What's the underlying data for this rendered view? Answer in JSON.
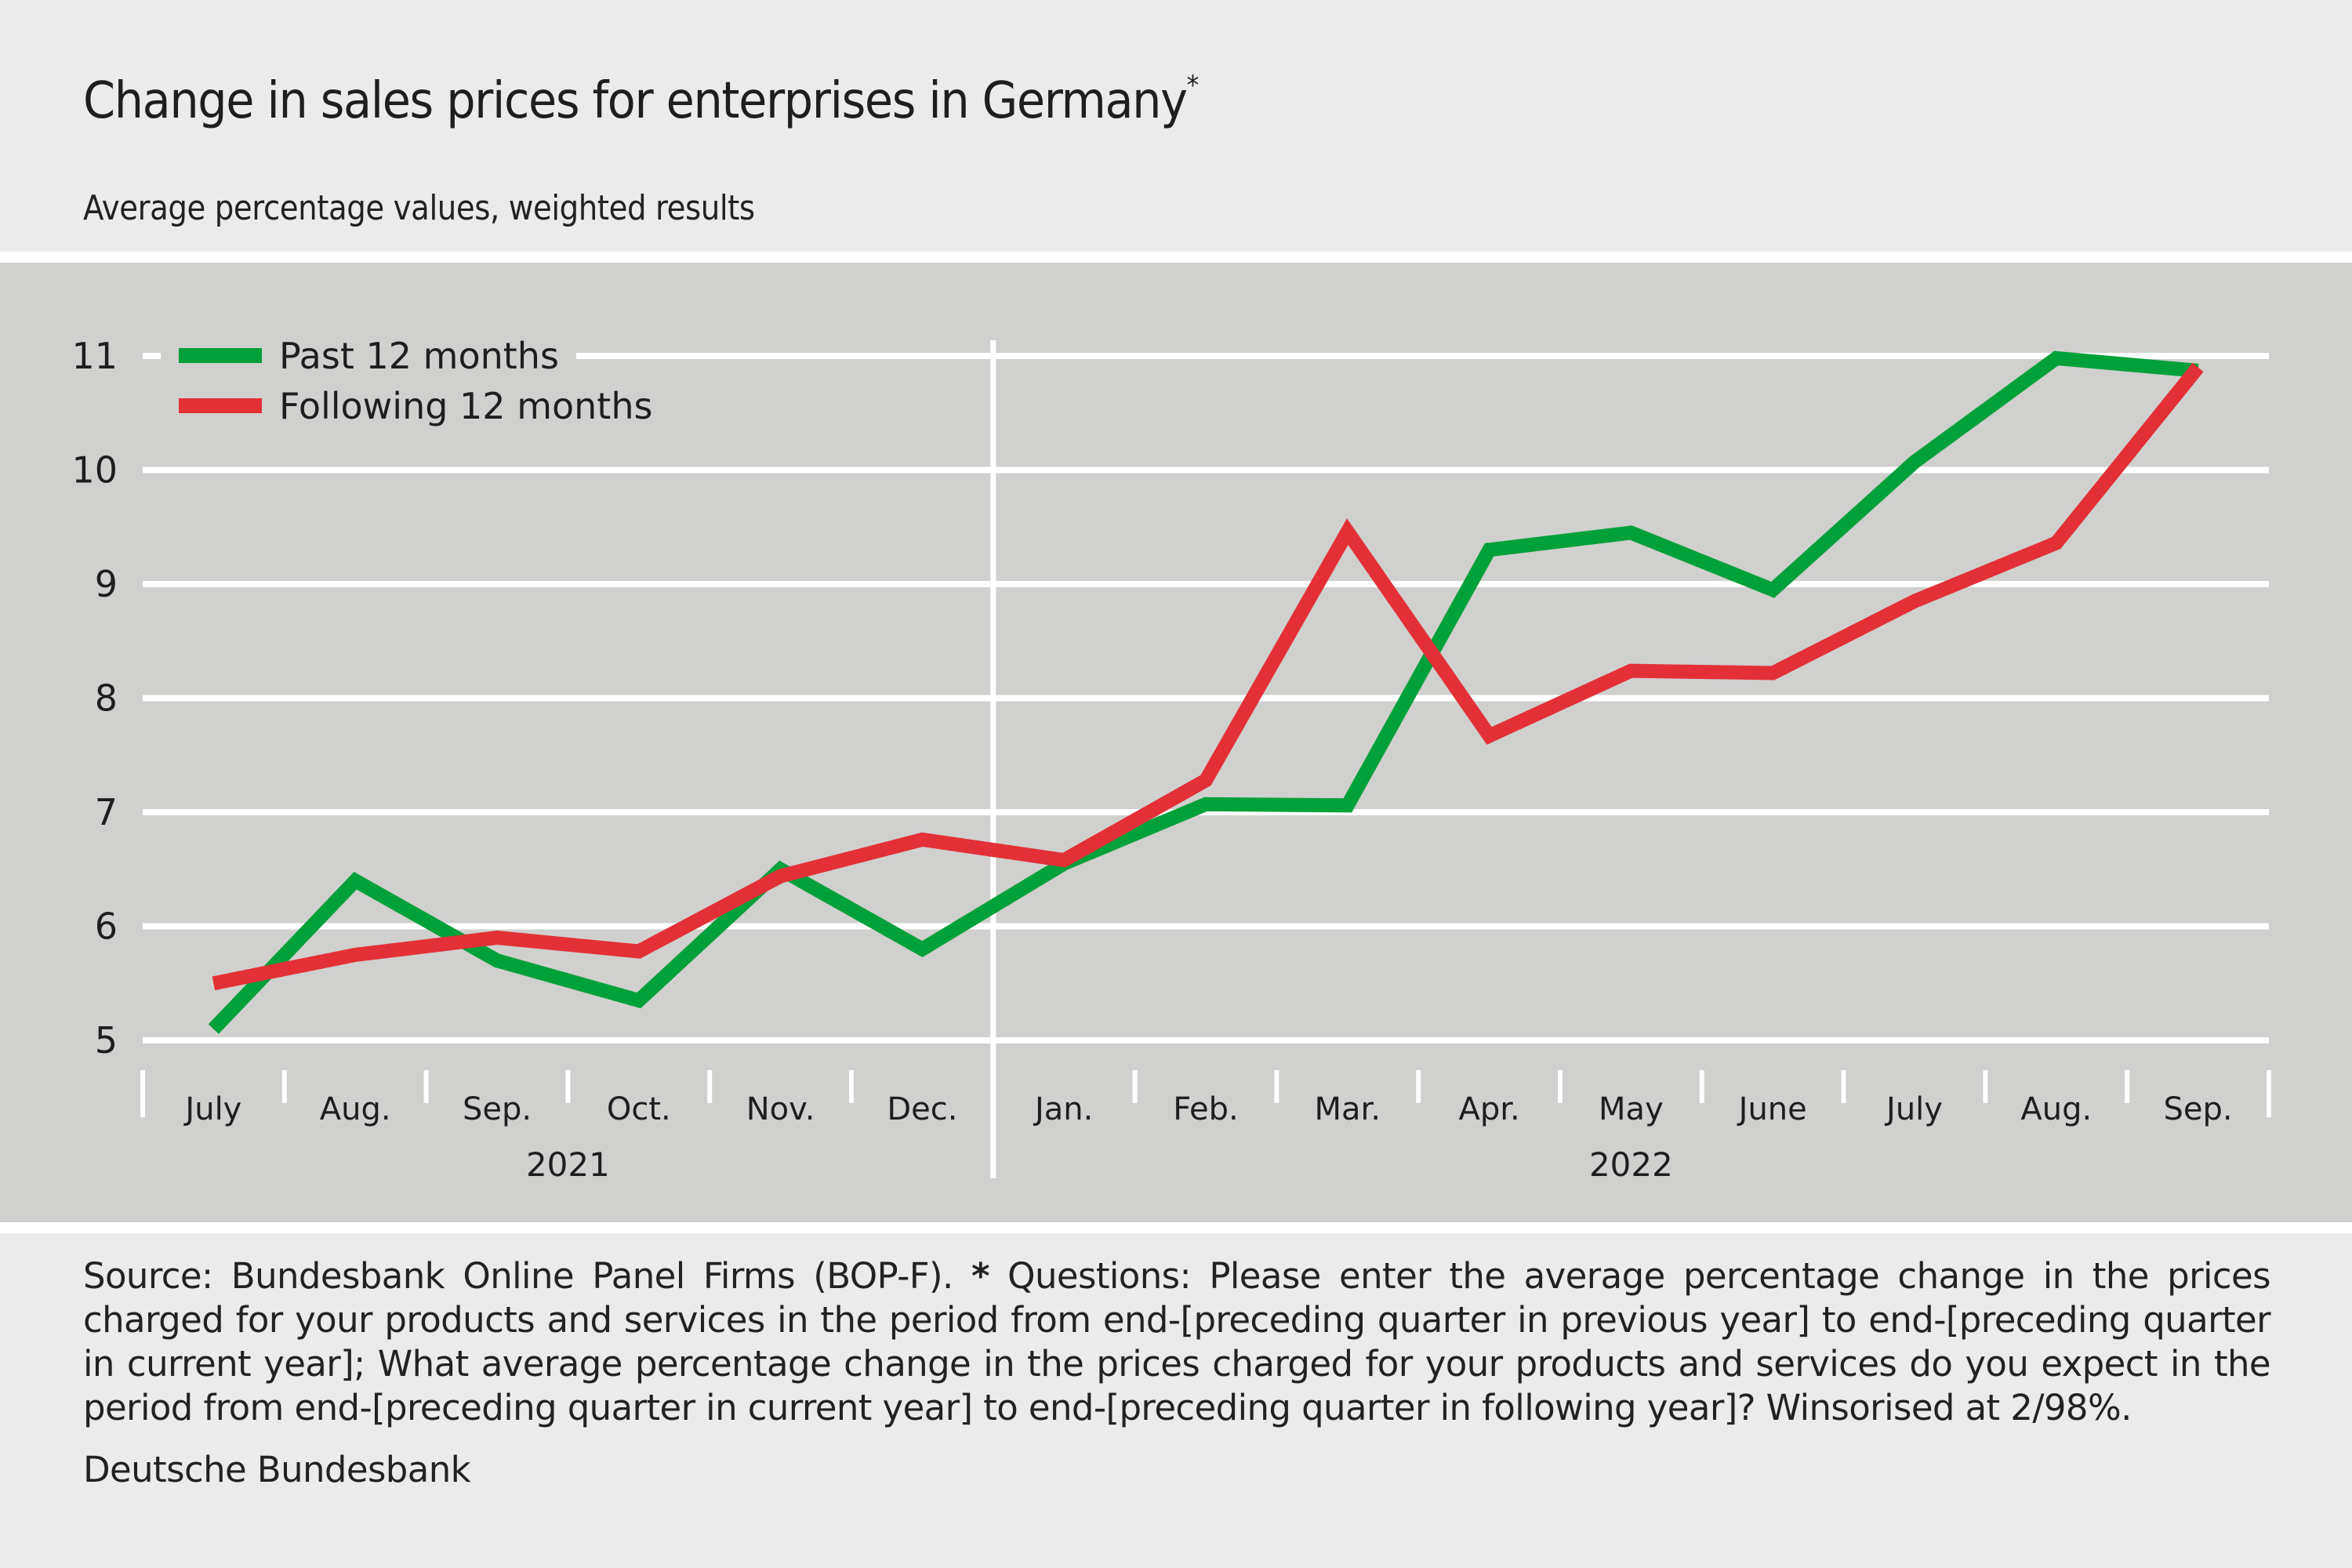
{
  "header": {
    "title": "Change in sales prices for enterprises in Germany",
    "title_footnote_mark": "*",
    "subtitle": "Average percentage values, weighted results"
  },
  "footer": {
    "source_prefix": "Source: Bundesbank Online Panel Firms (BOP-F).",
    "footnote_mark": "*",
    "footnote_text": "Questions: Please enter the average percentage change in the prices charged for your products and services in the period from end-[preceding quarter in previous year] to end-[preceding quarter in current year]; What average percentage change in the prices charged for your products and services do you expect in the period from end-[preceding quarter in current year] to end-[preceding quarter in following year]? Winsorised at 2/98%.",
    "credit": "Deutsche Bundesbank"
  },
  "colors": {
    "past": "#00a03a",
    "following": "#e33036",
    "panel": "#d0d0ce",
    "grid": "#ffffff",
    "background": "#ebebeb"
  },
  "chart_data": {
    "type": "line",
    "title": "Change in sales prices for enterprises in Germany*",
    "subtitle": "Average percentage values, weighted results",
    "xlabel": "",
    "ylabel": "",
    "categories": [
      "July",
      "Aug.",
      "Sep.",
      "Oct.",
      "Nov.",
      "Dec.",
      "Jan.",
      "Feb.",
      "Mar.",
      "Apr.",
      "May",
      "June",
      "July",
      "Aug.",
      "Sep."
    ],
    "year_groups": [
      {
        "label": "2021",
        "start_index": 0,
        "end_index": 5
      },
      {
        "label": "2022",
        "start_index": 6,
        "end_index": 14
      }
    ],
    "series": [
      {
        "name": "Past 12 months",
        "color": "#00a03a",
        "values": [
          5.1,
          6.4,
          5.7,
          5.35,
          6.5,
          5.8,
          6.55,
          7.07,
          7.06,
          9.3,
          9.45,
          8.95,
          10.07,
          10.98,
          10.87
        ]
      },
      {
        "name": "Following 12 months",
        "color": "#e33036",
        "values": [
          5.5,
          5.75,
          5.9,
          5.78,
          6.44,
          6.76,
          6.58,
          7.28,
          9.46,
          7.67,
          8.24,
          8.22,
          8.85,
          9.36,
          10.9
        ]
      }
    ],
    "yticks": [
      5,
      6,
      7,
      8,
      9,
      10,
      11
    ],
    "ylim": [
      5,
      11
    ],
    "grid": true,
    "legend_position": "top-left"
  }
}
